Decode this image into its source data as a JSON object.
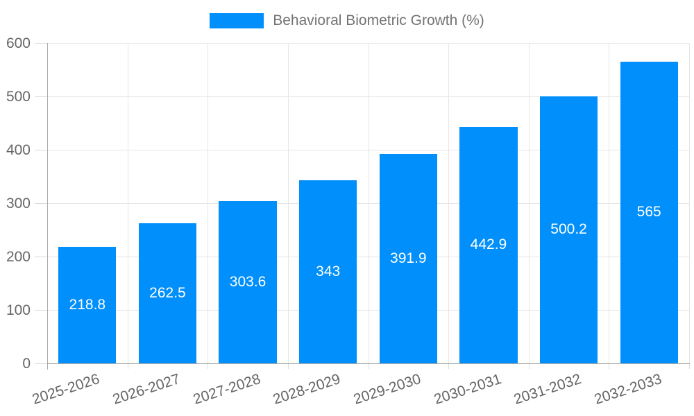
{
  "chart_data": {
    "type": "bar",
    "title": "Behavioral Biometric Growth (%)",
    "legend": {
      "label": "Behavioral Biometric Growth (%)",
      "position": "top"
    },
    "categories": [
      "2025-2026",
      "2026-2027",
      "2027-2028",
      "2028-2029",
      "2029-2030",
      "2030-2031",
      "2031-2032",
      "2032-2033"
    ],
    "series": [
      {
        "name": "Behavioral Biometric Growth (%)",
        "values": [
          218.8,
          262.5,
          303.6,
          343,
          391.9,
          442.9,
          500.2,
          565
        ]
      }
    ],
    "data_labels": [
      "218.8",
      "262.5",
      "303.6",
      "343",
      "391.9",
      "442.9",
      "500.2",
      "565"
    ],
    "xlabel": "",
    "ylabel": "",
    "ylim": [
      0,
      600
    ],
    "ytick_step": 100,
    "ytick_labels": [
      "0",
      "100",
      "200",
      "300",
      "400",
      "500",
      "600"
    ],
    "grid": "on",
    "colors": {
      "bar": "#008FFB",
      "axis_text": "#666666",
      "legend_text": "#737373",
      "gridline": "#e6e6e6",
      "axis_line": "#ababab",
      "data_label_text": "#ffffff",
      "background": "#ffffff"
    }
  }
}
